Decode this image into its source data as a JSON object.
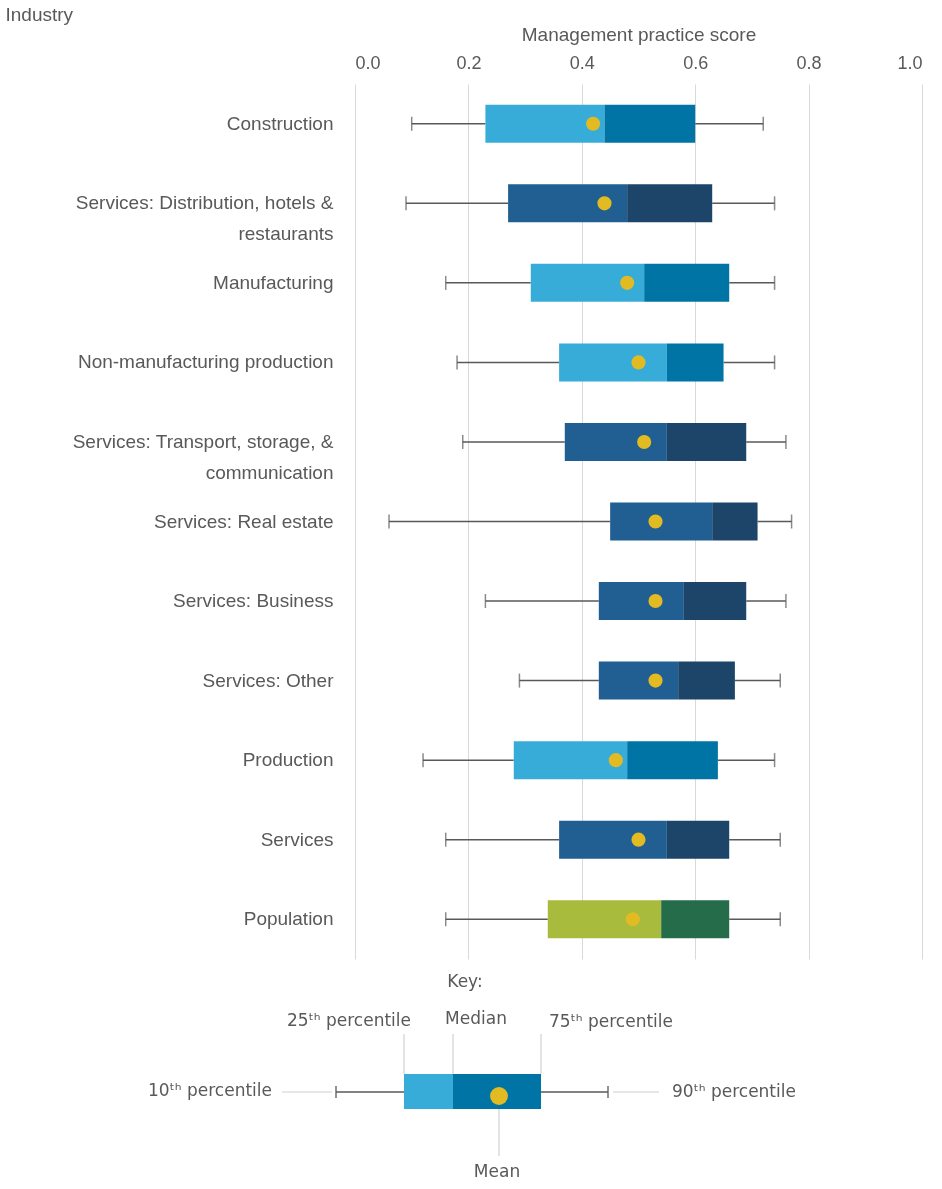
{
  "chart_data": {
    "type": "box",
    "xlabel": "Management practice score",
    "ylabel": "Industry",
    "categories": [
      "Construction",
      "Services: Distribution, hotels & restaurants",
      "Manufacturing",
      "Non-manufacturing production",
      "Services: Transport, storage, & communication",
      "Services: Real estate",
      "Services: Business",
      "Services: Other",
      "Production",
      "Services",
      "Population"
    ],
    "orientation": "horizontal",
    "legend": false,
    "xlim": [
      0,
      1
    ],
    "xticks": [
      {
        "value": 0,
        "label": "0.0"
      },
      {
        "value": 0.2,
        "label": "0.2"
      },
      {
        "value": 0.4,
        "label": "0.4"
      },
      {
        "value": 0.6,
        "label": "0.6"
      },
      {
        "value": 0.8,
        "label": "0.8"
      },
      {
        "value": 1,
        "label": "1.0"
      }
    ],
    "grid": "x",
    "series": [
      {
        "colors": [
          [
            "#38acd8",
            "#0074a4"
          ],
          null,
          [
            "#38acd8",
            "#0074a4"
          ],
          [
            "#38acd8",
            "#0074a4"
          ],
          null,
          null,
          null,
          null,
          [
            "#38acd8",
            "#0074a4"
          ],
          null,
          null
        ],
        "boxes": [
          {
            "low": 0.1,
            "q1": 0.23,
            "median": 0.44,
            "q3": 0.6,
            "high": 0.72,
            "mean": 0.42
          },
          null,
          {
            "low": 0.16,
            "q1": 0.31,
            "median": 0.51,
            "q3": 0.66,
            "high": 0.74,
            "mean": 0.48
          },
          {
            "low": 0.18,
            "q1": 0.36,
            "median": 0.55,
            "q3": 0.65,
            "high": 0.74,
            "mean": 0.5
          },
          null,
          null,
          null,
          null,
          {
            "low": 0.12,
            "q1": 0.28,
            "median": 0.48,
            "q3": 0.64,
            "high": 0.74,
            "mean": 0.46
          },
          null,
          null
        ]
      },
      {
        "colors": [
          null,
          [
            "#215f93",
            "#1c4569"
          ],
          null,
          null,
          [
            "#215f93",
            "#1c4569"
          ],
          [
            "#215f93",
            "#1c4569"
          ],
          [
            "#215f93",
            "#1c4569"
          ],
          [
            "#215f93",
            "#1c4569"
          ],
          null,
          [
            "#215f93",
            "#1c4569"
          ],
          null
        ],
        "boxes": [
          null,
          {
            "low": 0.09,
            "q1": 0.27,
            "median": 0.48,
            "q3": 0.63,
            "high": 0.74,
            "mean": 0.44
          },
          null,
          null,
          {
            "low": 0.19,
            "q1": 0.37,
            "median": 0.55,
            "q3": 0.69,
            "high": 0.76,
            "mean": 0.51
          },
          {
            "low": 0.06,
            "q1": 0.45,
            "median": 0.63,
            "q3": 0.71,
            "high": 0.77,
            "mean": 0.53
          },
          {
            "low": 0.23,
            "q1": 0.43,
            "median": 0.58,
            "q3": 0.69,
            "high": 0.76,
            "mean": 0.53
          },
          {
            "low": 0.29,
            "q1": 0.43,
            "median": 0.57,
            "q3": 0.67,
            "high": 0.75,
            "mean": 0.53
          },
          null,
          {
            "low": 0.16,
            "q1": 0.36,
            "median": 0.55,
            "q3": 0.66,
            "high": 0.75,
            "mean": 0.5
          },
          null
        ]
      },
      {
        "colors": [
          null,
          null,
          null,
          null,
          null,
          null,
          null,
          null,
          null,
          null,
          [
            "#a8bb3c",
            "#256c4a"
          ]
        ],
        "boxes": [
          null,
          null,
          null,
          null,
          null,
          null,
          null,
          null,
          null,
          null,
          {
            "low": 0.16,
            "q1": 0.34,
            "median": 0.54,
            "q3": 0.66,
            "high": 0.75,
            "mean": 0.49
          }
        ]
      }
    ],
    "annotations": [
      "Key:",
      "25ᵗʰ percentile",
      "Median",
      "75ᵗʰ percentile",
      "10ᵗʰ percentile",
      "90ᵗʰ percentile",
      "Mean"
    ]
  }
}
